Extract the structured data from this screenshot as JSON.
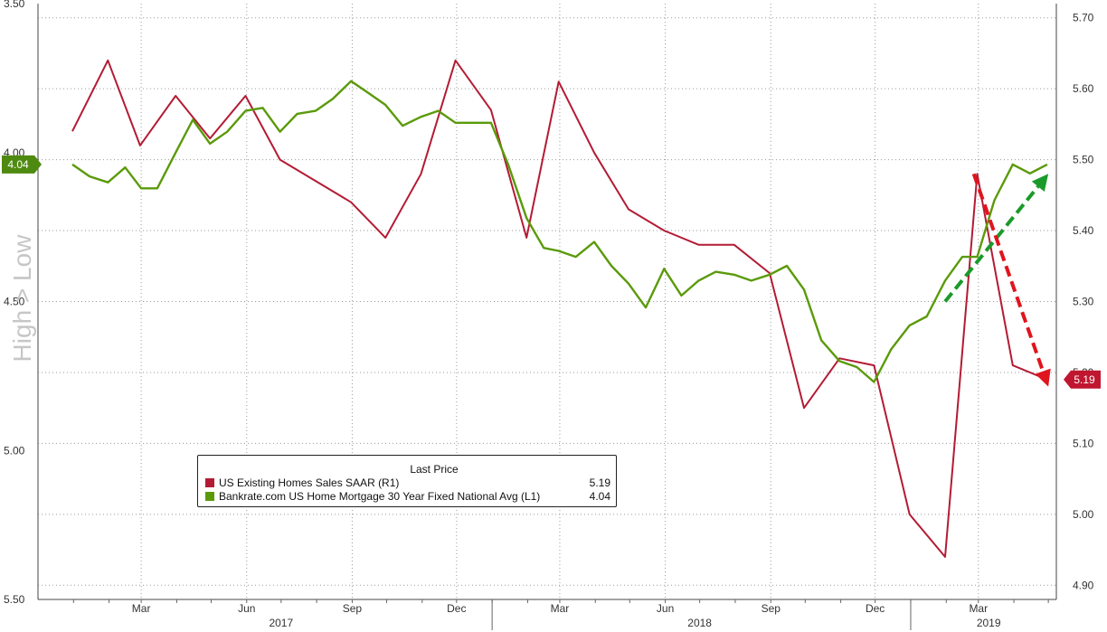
{
  "chart_data": {
    "type": "line",
    "left_axis": {
      "title": "High > Low",
      "inverted": true,
      "range": [
        3.5,
        5.5
      ],
      "ticks": [
        "3.50",
        "4.00",
        "4.50",
        "5.00",
        "5.50"
      ]
    },
    "right_axis": {
      "range": [
        4.88,
        5.72
      ],
      "ticks": [
        "5.70",
        "5.60",
        "5.50",
        "5.40",
        "5.30",
        "5.20",
        "5.10",
        "5.00",
        "4.90"
      ]
    },
    "x_axis": {
      "month_labels": [
        "Mar",
        "Jun",
        "Sep",
        "Dec",
        "Mar",
        "Jun",
        "Sep",
        "Dec",
        "Mar"
      ],
      "year_labels": [
        "2017",
        "2018",
        "2019"
      ]
    },
    "legend": {
      "header": "Last Price",
      "entries": [
        {
          "name": "US Existing Homes Sales SAAR  (R1)",
          "value": "5.19",
          "color": "#b31b34"
        },
        {
          "name": "Bankrate.com US Home Mortgage 30 Year Fixed National Avg  (L1)",
          "value": "4.04",
          "color": "#5a9a0a"
        }
      ]
    },
    "series": [
      {
        "name": "US Existing Homes Sales SAAR",
        "axis": "right",
        "color": "#b31b34",
        "points": [
          [
            "2016-12-31",
            5.54
          ],
          [
            "2017-01-31",
            5.64
          ],
          [
            "2017-02-28",
            5.52
          ],
          [
            "2017-03-31",
            5.59
          ],
          [
            "2017-04-30",
            5.53
          ],
          [
            "2017-05-31",
            5.59
          ],
          [
            "2017-06-30",
            5.5
          ],
          [
            "2017-07-31",
            5.47
          ],
          [
            "2017-08-31",
            5.44
          ],
          [
            "2017-09-30",
            5.39
          ],
          [
            "2017-10-31",
            5.48
          ],
          [
            "2017-11-30",
            5.64
          ],
          [
            "2017-12-31",
            5.57
          ],
          [
            "2018-01-31",
            5.39
          ],
          [
            "2018-02-28",
            5.61
          ],
          [
            "2018-03-31",
            5.51
          ],
          [
            "2018-04-30",
            5.43
          ],
          [
            "2018-05-31",
            5.4
          ],
          [
            "2018-06-30",
            5.38
          ],
          [
            "2018-07-31",
            5.38
          ],
          [
            "2018-08-31",
            5.34
          ],
          [
            "2018-09-30",
            5.15
          ],
          [
            "2018-10-31",
            5.22
          ],
          [
            "2018-11-30",
            5.21
          ],
          [
            "2018-12-31",
            5.0
          ],
          [
            "2019-01-31",
            4.94
          ],
          [
            "2019-02-28",
            5.48
          ],
          [
            "2019-03-31",
            5.21
          ],
          [
            "2019-04-30",
            5.19
          ]
        ]
      },
      {
        "name": "Bankrate.com US Home Mortgage 30 Year Fixed National Avg",
        "axis": "left",
        "color": "#5a9a0a",
        "points": [
          [
            "2016-12-31",
            4.04
          ],
          [
            "2017-01-15",
            4.08
          ],
          [
            "2017-01-31",
            4.1
          ],
          [
            "2017-02-15",
            4.05
          ],
          [
            "2017-03-01",
            4.12
          ],
          [
            "2017-03-15",
            4.12
          ],
          [
            "2017-03-31",
            4.0
          ],
          [
            "2017-04-15",
            3.89
          ],
          [
            "2017-04-30",
            3.97
          ],
          [
            "2017-05-15",
            3.93
          ],
          [
            "2017-05-31",
            3.86
          ],
          [
            "2017-06-15",
            3.85
          ],
          [
            "2017-06-30",
            3.93
          ],
          [
            "2017-07-15",
            3.87
          ],
          [
            "2017-07-31",
            3.86
          ],
          [
            "2017-08-15",
            3.82
          ],
          [
            "2017-08-31",
            3.76
          ],
          [
            "2017-09-15",
            3.8
          ],
          [
            "2017-09-30",
            3.84
          ],
          [
            "2017-10-15",
            3.91
          ],
          [
            "2017-10-31",
            3.88
          ],
          [
            "2017-11-15",
            3.86
          ],
          [
            "2017-11-30",
            3.9
          ],
          [
            "2017-12-15",
            3.9
          ],
          [
            "2017-12-31",
            3.9
          ],
          [
            "2018-01-15",
            4.04
          ],
          [
            "2018-01-31",
            4.22
          ],
          [
            "2018-02-15",
            4.32
          ],
          [
            "2018-02-28",
            4.33
          ],
          [
            "2018-03-15",
            4.35
          ],
          [
            "2018-03-31",
            4.3
          ],
          [
            "2018-04-15",
            4.38
          ],
          [
            "2018-04-30",
            4.44
          ],
          [
            "2018-05-15",
            4.52
          ],
          [
            "2018-05-31",
            4.39
          ],
          [
            "2018-06-15",
            4.48
          ],
          [
            "2018-06-30",
            4.43
          ],
          [
            "2018-07-15",
            4.4
          ],
          [
            "2018-07-31",
            4.41
          ],
          [
            "2018-08-15",
            4.43
          ],
          [
            "2018-08-31",
            4.41
          ],
          [
            "2018-09-15",
            4.38
          ],
          [
            "2018-09-30",
            4.46
          ],
          [
            "2018-10-15",
            4.63
          ],
          [
            "2018-10-31",
            4.7
          ],
          [
            "2018-11-15",
            4.72
          ],
          [
            "2018-11-30",
            4.77
          ],
          [
            "2018-12-15",
            4.66
          ],
          [
            "2018-12-31",
            4.58
          ],
          [
            "2019-01-15",
            4.55
          ],
          [
            "2019-01-31",
            4.43
          ],
          [
            "2019-02-15",
            4.35
          ],
          [
            "2019-02-28",
            4.35
          ],
          [
            "2019-03-15",
            4.16
          ],
          [
            "2019-03-31",
            4.04
          ],
          [
            "2019-04-15",
            4.07
          ],
          [
            "2019-04-30",
            4.04
          ]
        ]
      }
    ],
    "last_labels": {
      "left": "4.04",
      "right": "5.19"
    },
    "annotations": [
      {
        "type": "arrow",
        "color": "#1a9a2a",
        "style": "dashed",
        "from": [
          "2019-01-31",
          5.3
        ],
        "to": [
          "2019-05-01",
          5.48
        ]
      },
      {
        "type": "arrow",
        "color": "#e0141e",
        "style": "dashed",
        "from": [
          "2019-02-25",
          5.48
        ],
        "to": [
          "2019-05-01",
          5.18
        ]
      }
    ]
  }
}
